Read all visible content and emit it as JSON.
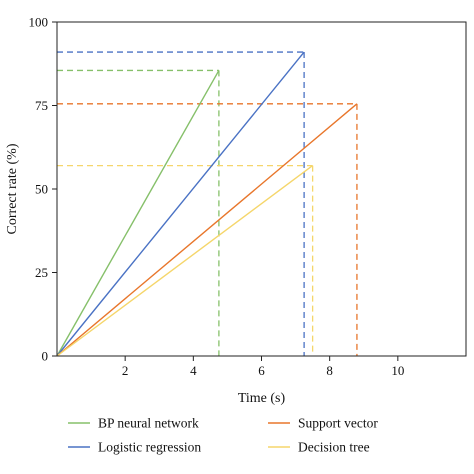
{
  "chart_data": {
    "type": "line",
    "xlabel": "Time (s)",
    "ylabel": "Correct rate (%)",
    "xlim": [
      0,
      12
    ],
    "ylim": [
      0,
      100
    ],
    "xticks": [
      2,
      4,
      6,
      8,
      10
    ],
    "yticks": [
      0,
      25,
      50,
      75,
      100
    ],
    "grid": false,
    "legend_position": "bottom",
    "series": [
      {
        "name": "BP neural network",
        "color": "#86c06a",
        "x": [
          0,
          4.75
        ],
        "y": [
          0,
          85.5
        ]
      },
      {
        "name": "Logistic regression",
        "color": "#4a72c4",
        "x": [
          0,
          7.25
        ],
        "y": [
          0,
          91
        ]
      },
      {
        "name": "Support vector",
        "color": "#e8762b",
        "x": [
          0,
          8.8
        ],
        "y": [
          0,
          75.5
        ]
      },
      {
        "name": "Decision tree",
        "color": "#f5d66b",
        "x": [
          0,
          7.5
        ],
        "y": [
          0,
          57
        ]
      }
    ]
  }
}
